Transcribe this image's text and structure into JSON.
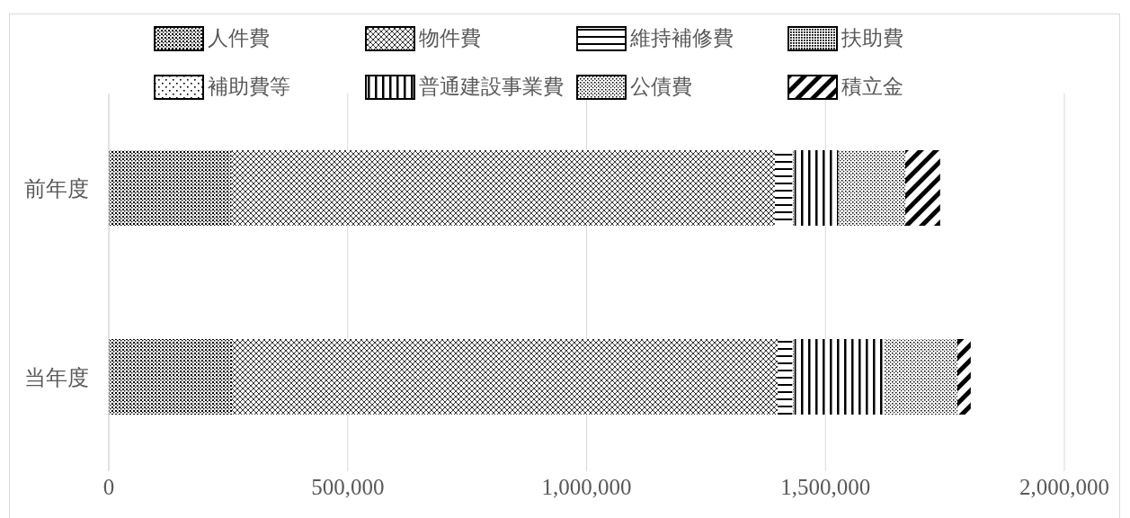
{
  "chart_data": {
    "type": "bar",
    "orientation": "horizontal",
    "stacked": true,
    "categories": [
      "前年度",
      "当年度"
    ],
    "series": [
      {
        "name": "人件費",
        "color": "#000000",
        "values": [
          257000,
          258000
        ]
      },
      {
        "name": "物件費",
        "color": "#000000",
        "values": [
          1137000,
          1142000
        ]
      },
      {
        "name": "維持補修費",
        "color": "#000000",
        "values": [
          37000,
          31000
        ]
      },
      {
        "name": "扶助費",
        "color": "#000000",
        "values": [
          2000,
          2000
        ]
      },
      {
        "name": "補助費等",
        "color": "#000000",
        "values": [
          2000,
          2000
        ]
      },
      {
        "name": "普通建設事業費",
        "color": "#000000",
        "values": [
          92000,
          189000
        ]
      },
      {
        "name": "公債費",
        "color": "#000000",
        "values": [
          140000,
          152000
        ]
      },
      {
        "name": "積立金",
        "color": "#000000",
        "values": [
          73000,
          28000
        ]
      }
    ],
    "xlim": [
      0,
      2000000
    ],
    "xticks": [
      0,
      {
        "value": 500000,
        "label": "500,000"
      },
      {
        "value": 1000000,
        "label": "1,000,000"
      },
      {
        "value": 1500000,
        "label": "1,500,000"
      },
      {
        "value": 2000000,
        "label": "2,000,000"
      }
    ],
    "grid": "x",
    "legend": "top"
  }
}
